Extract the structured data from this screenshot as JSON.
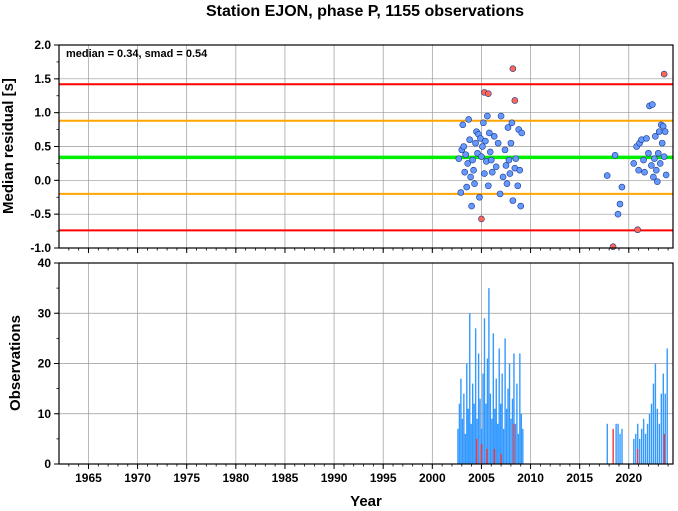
{
  "chart_data": [
    {
      "type": "scatter",
      "title": "Station EJON, phase P, 1155 observations",
      "ylabel": "Median residual [s]",
      "annotation": "median = 0.34, smad = 0.54",
      "xlim": [
        1962,
        2024.5
      ],
      "ylim": [
        -1.0,
        2.0
      ],
      "y_ticks": [
        "2.0",
        "1.5",
        "1.0",
        "0.5",
        "0.0",
        "-0.5",
        "-1.0"
      ],
      "y_tick_values": [
        2.0,
        1.5,
        1.0,
        0.5,
        0.0,
        -0.5,
        -1.0
      ],
      "grid": true,
      "reference_lines": [
        {
          "name": "median",
          "y": 0.34,
          "color": "#00ee00"
        },
        {
          "name": "+1 smad",
          "y": 0.88,
          "color": "#ffa500"
        },
        {
          "name": "-1 smad",
          "y": -0.2,
          "color": "#ffa500"
        },
        {
          "name": "+2 smad",
          "y": 1.42,
          "color": "#ff0000"
        },
        {
          "name": "-2 smad",
          "y": -0.74,
          "color": "#ff0000"
        }
      ],
      "series": [
        {
          "color": "#6699ff",
          "points": [
            [
              2002.7,
              0.32
            ],
            [
              2002.9,
              -0.18
            ],
            [
              2003.0,
              0.45
            ],
            [
              2003.1,
              0.82
            ],
            [
              2003.2,
              0.5
            ],
            [
              2003.3,
              0.12
            ],
            [
              2003.4,
              0.38
            ],
            [
              2003.5,
              -0.1
            ],
            [
              2003.6,
              0.25
            ],
            [
              2003.7,
              0.9
            ],
            [
              2003.8,
              0.6
            ],
            [
              2003.9,
              0.05
            ],
            [
              2004.0,
              -0.38
            ],
            [
              2004.1,
              0.3
            ],
            [
              2004.2,
              0.15
            ],
            [
              2004.3,
              -0.05
            ],
            [
              2004.4,
              0.55
            ],
            [
              2004.5,
              0.72
            ],
            [
              2004.6,
              0.4
            ],
            [
              2004.7,
              0.68
            ],
            [
              2004.8,
              -0.25
            ],
            [
              2004.9,
              0.62
            ],
            [
              2005.0,
              0.35
            ],
            [
              2005.1,
              0.5
            ],
            [
              2005.2,
              0.85
            ],
            [
              2005.3,
              0.1
            ],
            [
              2005.4,
              0.58
            ],
            [
              2005.5,
              0.28
            ],
            [
              2005.6,
              0.95
            ],
            [
              2005.7,
              -0.08
            ],
            [
              2005.8,
              0.7
            ],
            [
              2005.9,
              0.42
            ],
            [
              2006.0,
              0.3
            ],
            [
              2006.1,
              0.12
            ],
            [
              2006.3,
              0.65
            ],
            [
              2006.5,
              0.2
            ],
            [
              2006.7,
              0.55
            ],
            [
              2006.9,
              -0.2
            ],
            [
              2007.0,
              0.95
            ],
            [
              2007.2,
              0.05
            ],
            [
              2007.4,
              0.45
            ],
            [
              2007.5,
              0.22
            ],
            [
              2007.6,
              -0.05
            ],
            [
              2007.7,
              0.78
            ],
            [
              2007.8,
              0.3
            ],
            [
              2007.9,
              0.1
            ],
            [
              2008.0,
              0.55
            ],
            [
              2008.1,
              0.85
            ],
            [
              2008.2,
              -0.3
            ],
            [
              2008.4,
              0.18
            ],
            [
              2008.5,
              0.32
            ],
            [
              2008.7,
              -0.08
            ],
            [
              2008.8,
              0.75
            ],
            [
              2008.9,
              0.15
            ],
            [
              2009.0,
              -0.38
            ],
            [
              2009.1,
              0.7
            ],
            [
              2017.8,
              0.07
            ],
            [
              2018.6,
              0.37
            ],
            [
              2018.9,
              -0.5
            ],
            [
              2019.1,
              -0.35
            ],
            [
              2019.3,
              -0.1
            ],
            [
              2020.5,
              0.25
            ],
            [
              2020.8,
              0.5
            ],
            [
              2021.0,
              0.15
            ],
            [
              2021.1,
              0.55
            ],
            [
              2021.3,
              0.6
            ],
            [
              2021.5,
              0.3
            ],
            [
              2021.6,
              0.12
            ],
            [
              2021.8,
              0.62
            ],
            [
              2022.0,
              0.4
            ],
            [
              2022.1,
              1.1
            ],
            [
              2022.3,
              0.22
            ],
            [
              2022.4,
              1.12
            ],
            [
              2022.5,
              0.05
            ],
            [
              2022.6,
              0.32
            ],
            [
              2022.7,
              0.65
            ],
            [
              2022.8,
              0.15
            ],
            [
              2022.9,
              -0.02
            ],
            [
              2023.0,
              0.4
            ],
            [
              2023.1,
              0.72
            ],
            [
              2023.2,
              0.25
            ],
            [
              2023.3,
              0.82
            ],
            [
              2023.4,
              0.55
            ],
            [
              2023.5,
              0.8
            ],
            [
              2023.6,
              0.35
            ],
            [
              2023.7,
              0.72
            ],
            [
              2023.8,
              0.08
            ]
          ]
        },
        {
          "color": "#ff6655",
          "points": [
            [
              2005.0,
              -0.57
            ],
            [
              2005.3,
              1.3
            ],
            [
              2005.7,
              1.28
            ],
            [
              2008.2,
              1.65
            ],
            [
              2008.4,
              1.18
            ],
            [
              2018.4,
              -0.98
            ],
            [
              2020.9,
              -0.73
            ],
            [
              2023.6,
              1.57
            ]
          ]
        }
      ]
    },
    {
      "type": "bar",
      "ylabel": "Observations",
      "xlabel": "Year",
      "xlim": [
        1962,
        2024.5
      ],
      "ylim": [
        0,
        40
      ],
      "x_ticks": [
        "1965",
        "1970",
        "1975",
        "1980",
        "1985",
        "1990",
        "1995",
        "2000",
        "2005",
        "2010",
        "2015",
        "2020"
      ],
      "x_tick_values": [
        1965,
        1970,
        1975,
        1980,
        1985,
        1990,
        1995,
        2000,
        2005,
        2010,
        2015,
        2020
      ],
      "y_ticks": [
        "40",
        "30",
        "20",
        "10",
        "0"
      ],
      "y_tick_values": [
        40,
        30,
        20,
        10,
        0
      ],
      "grid": true,
      "series": [
        {
          "color": "#3399ff",
          "bars": [
            [
              2002.6,
              7
            ],
            [
              2002.75,
              12
            ],
            [
              2002.9,
              17
            ],
            [
              2003.05,
              9
            ],
            [
              2003.2,
              14
            ],
            [
              2003.35,
              6
            ],
            [
              2003.5,
              20
            ],
            [
              2003.65,
              11
            ],
            [
              2003.8,
              30
            ],
            [
              2003.95,
              8
            ],
            [
              2004.1,
              16
            ],
            [
              2004.25,
              12
            ],
            [
              2004.4,
              27
            ],
            [
              2004.55,
              9
            ],
            [
              2004.7,
              22
            ],
            [
              2004.85,
              13
            ],
            [
              2005.0,
              7
            ],
            [
              2005.15,
              18
            ],
            [
              2005.3,
              29
            ],
            [
              2005.45,
              12
            ],
            [
              2005.6,
              21
            ],
            [
              2005.75,
              35
            ],
            [
              2005.9,
              14
            ],
            [
              2006.05,
              9
            ],
            [
              2006.2,
              26
            ],
            [
              2006.35,
              11
            ],
            [
              2006.5,
              17
            ],
            [
              2006.65,
              8
            ],
            [
              2006.8,
              23
            ],
            [
              2006.95,
              12
            ],
            [
              2007.1,
              18
            ],
            [
              2007.25,
              7
            ],
            [
              2007.4,
              25
            ],
            [
              2007.55,
              11
            ],
            [
              2007.7,
              15
            ],
            [
              2007.85,
              20
            ],
            [
              2008.0,
              9
            ],
            [
              2008.15,
              13
            ],
            [
              2008.3,
              22
            ],
            [
              2008.45,
              8
            ],
            [
              2008.6,
              16
            ],
            [
              2008.75,
              6
            ],
            [
              2008.9,
              22
            ],
            [
              2009.05,
              10
            ],
            [
              2009.2,
              7
            ],
            [
              2017.8,
              8
            ],
            [
              2018.7,
              8
            ],
            [
              2018.9,
              8
            ],
            [
              2019.1,
              6
            ],
            [
              2019.3,
              7
            ],
            [
              2020.5,
              5
            ],
            [
              2020.7,
              6
            ],
            [
              2020.9,
              8
            ],
            [
              2021.1,
              5
            ],
            [
              2021.3,
              7
            ],
            [
              2021.5,
              9
            ],
            [
              2021.7,
              6
            ],
            [
              2021.9,
              8
            ],
            [
              2022.1,
              10
            ],
            [
              2022.3,
              12
            ],
            [
              2022.5,
              16
            ],
            [
              2022.7,
              20
            ],
            [
              2022.9,
              11
            ],
            [
              2023.1,
              8
            ],
            [
              2023.3,
              14
            ],
            [
              2023.5,
              18
            ],
            [
              2023.7,
              14
            ],
            [
              2023.9,
              23
            ]
          ]
        },
        {
          "color": "#ff3333",
          "bars": [
            [
              2004.5,
              5
            ],
            [
              2005.0,
              4
            ],
            [
              2005.55,
              3
            ],
            [
              2006.3,
              3
            ],
            [
              2007.0,
              2
            ],
            [
              2008.3,
              8
            ],
            [
              2018.4,
              7
            ],
            [
              2020.9,
              3
            ],
            [
              2023.6,
              6
            ]
          ]
        }
      ]
    }
  ]
}
